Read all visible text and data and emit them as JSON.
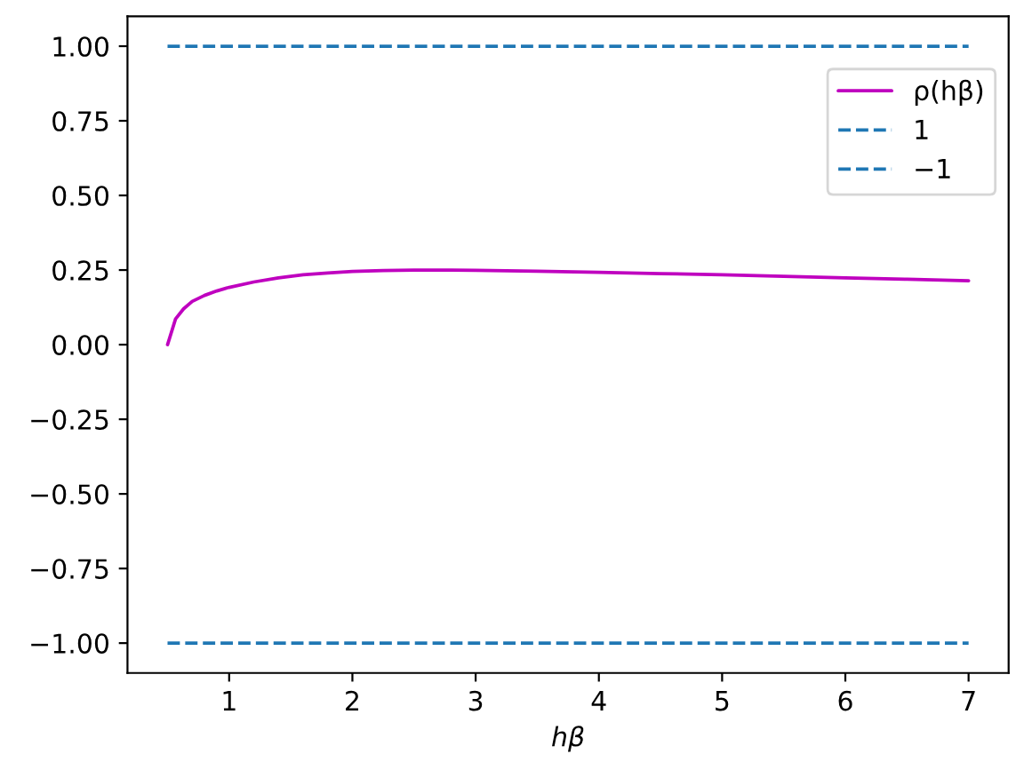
{
  "chart_data": {
    "type": "line",
    "xlabel": "hβ",
    "legend": "top right",
    "xlim": [
      0.175,
      7.325
    ],
    "ylim": [
      -1.1,
      1.1
    ],
    "xticks": [
      1,
      2,
      3,
      4,
      5,
      6,
      7
    ],
    "yticks": [
      {
        "value": -1,
        "label": "−1.00"
      },
      {
        "value": -0.75,
        "label": "−0.75"
      },
      {
        "value": -0.5,
        "label": "−0.50"
      },
      {
        "value": -0.25,
        "label": "−0.25"
      },
      {
        "value": 0,
        "label": "0.00"
      },
      {
        "value": 0.25,
        "label": "0.25"
      },
      {
        "value": 0.5,
        "label": "0.50"
      },
      {
        "value": 0.75,
        "label": "0.75"
      },
      {
        "value": 1,
        "label": "1.00"
      }
    ],
    "series": [
      {
        "name": "ρ(hβ)",
        "color": "#bf00bf",
        "line_style": "solid",
        "x": [
          0.5,
          0.565,
          0.63,
          0.7,
          0.8,
          0.9,
          1.0,
          1.2,
          1.4,
          1.6,
          1.8,
          2.0,
          2.25,
          2.5,
          2.75,
          3.0,
          3.5,
          4.0,
          4.5,
          5.0,
          5.5,
          6.0,
          6.5,
          7.0
        ],
        "values": [
          0.0,
          0.086,
          0.12,
          0.145,
          0.165,
          0.18,
          0.192,
          0.21,
          0.224,
          0.234,
          0.24,
          0.245,
          0.248,
          0.25,
          0.25,
          0.249,
          0.246,
          0.242,
          0.238,
          0.234,
          0.229,
          0.224,
          0.219,
          0.214
        ]
      },
      {
        "name": "1",
        "color": "#1f77b4",
        "line_style": "dashed",
        "x": [
          0.5,
          7.0
        ],
        "values": [
          1,
          1
        ]
      },
      {
        "name": "−1",
        "color": "#1f77b4",
        "line_style": "dashed",
        "x": [
          0.5,
          7.0
        ],
        "values": [
          -1,
          -1
        ]
      }
    ]
  }
}
